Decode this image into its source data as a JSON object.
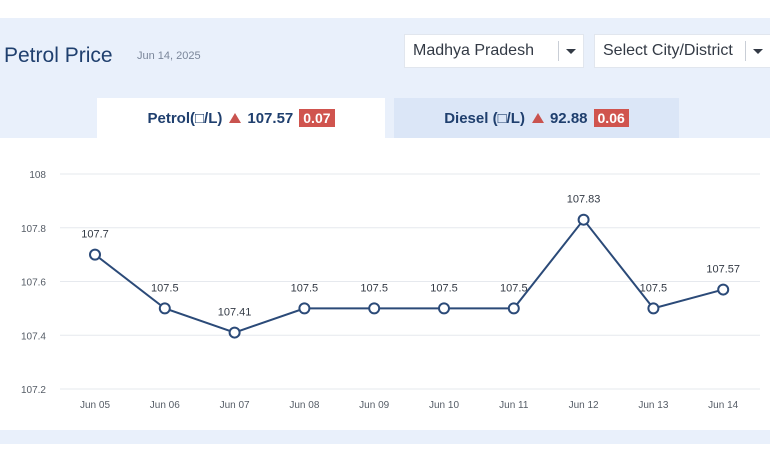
{
  "header": {
    "title": "Petrol Price",
    "date": "Jun 14, 2025"
  },
  "selects": {
    "state": "Madhya Pradesh",
    "city": "Select City/District"
  },
  "tabs": [
    {
      "label": "Petrol(□/L)",
      "price": "107.57",
      "change": "0.07"
    },
    {
      "label": "Diesel (□/L)",
      "price": "92.88",
      "change": "0.06"
    }
  ],
  "colors": {
    "panel_bg": "#e9f0fb",
    "line": "#2b4a78",
    "up_badge": "#d0544e",
    "grid": "#e6e9ee"
  },
  "icons": {
    "up": "triangle-up-icon",
    "dropdown": "caret-down-icon"
  },
  "chart_data": {
    "type": "line",
    "categories": [
      "Jun 05",
      "Jun 06",
      "Jun 07",
      "Jun 08",
      "Jun 09",
      "Jun 10",
      "Jun 11",
      "Jun 12",
      "Jun 13",
      "Jun 14"
    ],
    "values": [
      107.7,
      107.5,
      107.41,
      107.5,
      107.5,
      107.5,
      107.5,
      107.83,
      107.5,
      107.57
    ],
    "data_labels": [
      "107.7",
      "107.5",
      "107.41",
      "107.5",
      "107.5",
      "107.5",
      "107.5",
      "107.83",
      "107.5",
      "107.57"
    ],
    "yticks": [
      "107.2",
      "107.4",
      "107.6",
      "107.8",
      "108"
    ],
    "ylim": [
      107.2,
      108
    ],
    "grid": true,
    "legend": "none",
    "title": "",
    "xlabel": "",
    "ylabel": ""
  }
}
